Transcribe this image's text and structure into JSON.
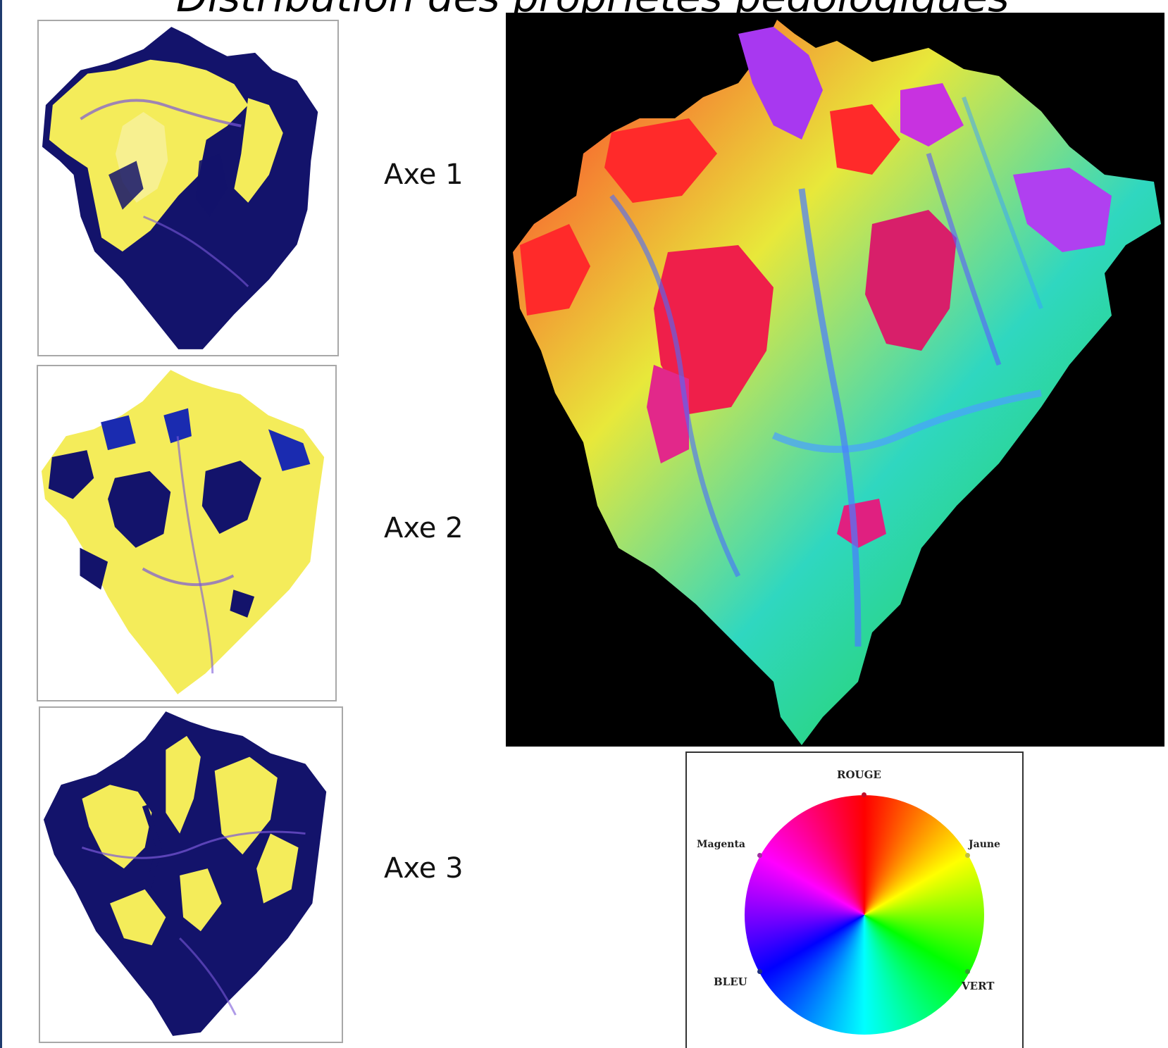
{
  "title": "Distribution des propriétés pédologiques",
  "axes": [
    {
      "label": "Axe 1"
    },
    {
      "label": "Axe 2"
    },
    {
      "label": "Axe 3"
    }
  ],
  "legend": {
    "rouge": "ROUGE",
    "jaune": "Jaune",
    "vert": "VERT",
    "bleu": "BLEU",
    "magenta": "Magenta",
    "colors": [
      "#ff0000",
      "#ffff00",
      "#00ff00",
      "#00ffff",
      "#0000ff",
      "#ff00ff"
    ]
  },
  "map_colors": {
    "low": "#13136b",
    "mid": "#6a3fd0",
    "high": "#f4ec5a",
    "background_big": "#000000"
  }
}
